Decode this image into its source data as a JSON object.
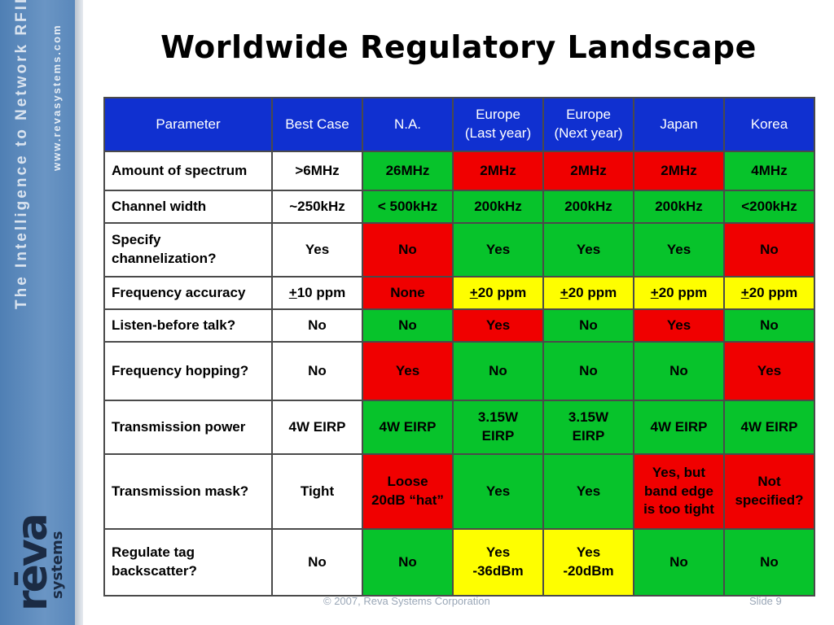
{
  "sidebar": {
    "tagline": "The Intelligence to Network RFID",
    "url": "www.revasystems.com",
    "logo_main": "rēva",
    "logo_sub": "systems"
  },
  "title": "Worldwide Regulatory Landscape",
  "table": {
    "headers": [
      "Parameter",
      "Best Case",
      "N.A.",
      "Europe\n(Last year)",
      "Europe\n(Next year)",
      "Japan",
      "Korea"
    ],
    "rows": [
      {
        "param": "Amount of spectrum",
        "cells": [
          {
            "t": "26MHz",
            "c": "g"
          },
          {
            "t": "2MHz",
            "c": "r"
          },
          {
            "t": "2MHz",
            "c": "r"
          },
          {
            "t": "2MHz",
            "c": "r"
          },
          {
            "t": "4MHz",
            "c": "g"
          }
        ],
        "best": ">6MHz"
      },
      {
        "param": "Channel width",
        "best": "~250kHz",
        "cells": [
          {
            "t": "< 500kHz",
            "c": "g"
          },
          {
            "t": "200kHz",
            "c": "g"
          },
          {
            "t": "200kHz",
            "c": "g"
          },
          {
            "t": "200kHz",
            "c": "g"
          },
          {
            "t": "<200kHz",
            "c": "g"
          }
        ]
      },
      {
        "param": "Specify channelization?",
        "best": "Yes",
        "cells": [
          {
            "t": "No",
            "c": "r"
          },
          {
            "t": "Yes",
            "c": "g"
          },
          {
            "t": "Yes",
            "c": "g"
          },
          {
            "t": "Yes",
            "c": "g"
          },
          {
            "t": "No",
            "c": "r"
          }
        ]
      },
      {
        "param": "Frequency accuracy",
        "best": "+10 ppm",
        "cells": [
          {
            "t": "None",
            "c": "r"
          },
          {
            "t": "+20 ppm",
            "c": "y"
          },
          {
            "t": "+20 ppm",
            "c": "y"
          },
          {
            "t": "+20 ppm",
            "c": "y"
          },
          {
            "t": "+20 ppm",
            "c": "y"
          }
        ]
      },
      {
        "param": "Listen-before talk?",
        "best": "No",
        "cells": [
          {
            "t": "No",
            "c": "g"
          },
          {
            "t": "Yes",
            "c": "r"
          },
          {
            "t": "No",
            "c": "g"
          },
          {
            "t": "Yes",
            "c": "r"
          },
          {
            "t": "No",
            "c": "g"
          }
        ]
      },
      {
        "param": "Frequency hopping?",
        "best": "No",
        "cells": [
          {
            "t": "Yes",
            "c": "r"
          },
          {
            "t": "No",
            "c": "g"
          },
          {
            "t": "No",
            "c": "g"
          },
          {
            "t": "No",
            "c": "g"
          },
          {
            "t": "Yes",
            "c": "r"
          }
        ]
      },
      {
        "param": "Transmission power",
        "best": "4W EIRP",
        "cells": [
          {
            "t": "4W EIRP",
            "c": "g"
          },
          {
            "t": "3.15W\nEIRP",
            "c": "g"
          },
          {
            "t": "3.15W\nEIRP",
            "c": "g"
          },
          {
            "t": "4W EIRP",
            "c": "g"
          },
          {
            "t": "4W EIRP",
            "c": "g"
          }
        ]
      },
      {
        "param": "Transmission mask?",
        "best": "Tight",
        "cells": [
          {
            "t": "Loose\n20dB “hat”",
            "c": "r"
          },
          {
            "t": "Yes",
            "c": "g"
          },
          {
            "t": "Yes",
            "c": "g"
          },
          {
            "t": "Yes, but\nband edge\nis too tight",
            "c": "r"
          },
          {
            "t": "Not\nspecified?",
            "c": "r"
          }
        ]
      },
      {
        "param": "Regulate tag backscatter?",
        "best": "No",
        "cells": [
          {
            "t": "No",
            "c": "g"
          },
          {
            "t": "Yes\n-36dBm",
            "c": "y"
          },
          {
            "t": "Yes\n-20dBm",
            "c": "y"
          },
          {
            "t": "No",
            "c": "g"
          },
          {
            "t": "No",
            "c": "g"
          }
        ]
      }
    ]
  },
  "footer": {
    "copyright": "© 2007, Reva Systems Corporation",
    "slide": "Slide 9"
  },
  "colors": {
    "header_blue": "#1030d0",
    "green": "#07c32b",
    "red": "#f00000",
    "yellow": "#fefe00",
    "sidebar_blue": "#5a88bb"
  }
}
